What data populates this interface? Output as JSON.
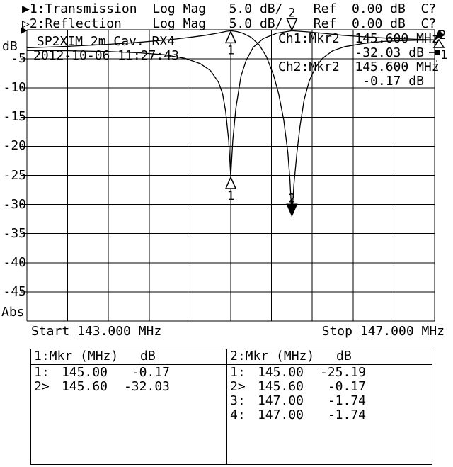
{
  "header": {
    "line1": "▶1:Transmission  Log Mag   5.0 dB/    Ref  0.00 dB  C?",
    "line2": "▷2:Reflection    Log Mag   5.0 dB/    Ref  0.00 dB  C?"
  },
  "plot": {
    "title": "SP2XIM 2m Cav. RX4",
    "timestamp": "2012-10-06 11:27:43",
    "y_unit": "dB",
    "y_mode_label": "Abs",
    "start_label": "Start 143.000 MHz",
    "stop_label": "Stop 147.000 MHz",
    "y_ticks": [
      -5,
      -10,
      -15,
      -20,
      -25,
      -30,
      -35,
      -40,
      -45
    ],
    "ch1_readout_line1": "Ch1:Mkr2  145.600 MHz",
    "ch1_readout_line2": "          -32.03 dB",
    "ch2_readout_line1": "Ch2:Mkr2  145.600 MHz",
    "ch2_readout_line2": "           -0.17 dB",
    "edge_trace_labels": [
      "1",
      "2"
    ]
  },
  "chart_data": {
    "type": "line",
    "title": "SP2XIM 2m Cav. RX4",
    "x_start_mhz": 143.0,
    "x_stop_mhz": 147.0,
    "x_divisions": 10,
    "y_divisions": 10,
    "ylim": [
      -50,
      0
    ],
    "db_per_div": 5.0,
    "ref_db": 0.0,
    "series": [
      {
        "name": "Transmission",
        "channel": 1,
        "scale": "5.0 dB/",
        "ref": "0.00 dB",
        "cal": "C?",
        "points": [
          [
            143.0,
            -3.1
          ],
          [
            143.4,
            -2.85
          ],
          [
            143.8,
            -2.5
          ],
          [
            144.1,
            -2.15
          ],
          [
            144.4,
            -1.7
          ],
          [
            144.6,
            -1.3
          ],
          [
            144.75,
            -0.95
          ],
          [
            144.88,
            -0.55
          ],
          [
            144.96,
            -0.25
          ],
          [
            145.0,
            -0.17
          ],
          [
            145.06,
            -0.3
          ],
          [
            145.12,
            -0.6
          ],
          [
            145.2,
            -1.3
          ],
          [
            145.28,
            -2.6
          ],
          [
            145.35,
            -4.6
          ],
          [
            145.42,
            -7.8
          ],
          [
            145.47,
            -11.0
          ],
          [
            145.52,
            -15.5
          ],
          [
            145.56,
            -21.0
          ],
          [
            145.58,
            -25.5
          ],
          [
            145.6,
            -32.03
          ],
          [
            145.62,
            -26.5
          ],
          [
            145.65,
            -21.0
          ],
          [
            145.68,
            -16.5
          ],
          [
            145.72,
            -12.0
          ],
          [
            145.77,
            -8.8
          ],
          [
            145.83,
            -6.5
          ],
          [
            145.9,
            -4.9
          ],
          [
            146.0,
            -3.6
          ],
          [
            146.12,
            -2.9
          ],
          [
            146.3,
            -2.35
          ],
          [
            146.5,
            -2.0
          ],
          [
            146.75,
            -1.82
          ],
          [
            147.0,
            -1.74
          ]
        ]
      },
      {
        "name": "Reflection",
        "channel": 2,
        "scale": "5.0 dB/",
        "ref": "0.00 dB",
        "cal": "C?",
        "points": [
          [
            143.0,
            -3.55
          ],
          [
            143.4,
            -3.6
          ],
          [
            143.8,
            -3.75
          ],
          [
            144.1,
            -3.95
          ],
          [
            144.35,
            -4.3
          ],
          [
            144.55,
            -4.9
          ],
          [
            144.7,
            -5.8
          ],
          [
            144.8,
            -7.0
          ],
          [
            144.88,
            -9.0
          ],
          [
            144.92,
            -11.0
          ],
          [
            144.95,
            -14.0
          ],
          [
            144.98,
            -19.0
          ],
          [
            145.0,
            -25.19
          ],
          [
            145.02,
            -19.0
          ],
          [
            145.05,
            -13.5
          ],
          [
            145.1,
            -8.0
          ],
          [
            145.15,
            -5.3
          ],
          [
            145.22,
            -3.0
          ],
          [
            145.32,
            -1.5
          ],
          [
            145.45,
            -0.6
          ],
          [
            145.6,
            -0.17
          ],
          [
            145.75,
            -0.35
          ],
          [
            145.9,
            -0.6
          ],
          [
            146.1,
            -0.95
          ],
          [
            146.35,
            -1.25
          ],
          [
            146.6,
            -1.5
          ],
          [
            146.8,
            -1.62
          ],
          [
            147.0,
            -1.74
          ]
        ]
      }
    ],
    "markers": [
      {
        "channel": 1,
        "label": "1",
        "freq_mhz": 145.0,
        "db": -0.17,
        "style": "open",
        "digit_pos": "below"
      },
      {
        "channel": 1,
        "label": "2",
        "freq_mhz": 145.6,
        "db": -32.03,
        "style": "filled",
        "digit_pos": "above"
      },
      {
        "channel": 2,
        "label": "1",
        "freq_mhz": 145.0,
        "db": -25.19,
        "style": "open",
        "digit_pos": "below"
      },
      {
        "channel": 2,
        "label": "2",
        "freq_mhz": 145.6,
        "db": -0.17,
        "style": "open",
        "digit_pos": "above"
      }
    ]
  },
  "tables": [
    {
      "title": "1:Mkr (MHz)",
      "unit": "dB",
      "rows": [
        {
          "m": "1:",
          "f": "145.00",
          "v": "-0.17"
        },
        {
          "m": "2>",
          "f": "145.60",
          "v": "-32.03"
        }
      ]
    },
    {
      "title": "2:Mkr (MHz)",
      "unit": "dB",
      "rows": [
        {
          "m": "1:",
          "f": "145.00",
          "v": "-25.19"
        },
        {
          "m": "2>",
          "f": "145.60",
          "v": "-0.17"
        },
        {
          "m": "3:",
          "f": "147.00",
          "v": "-1.74"
        },
        {
          "m": "4:",
          "f": "147.00",
          "v": "-1.74"
        }
      ]
    }
  ]
}
